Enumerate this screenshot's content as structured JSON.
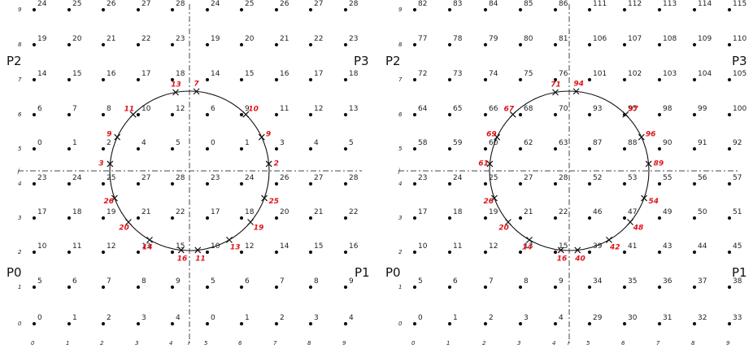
{
  "panels": [
    {
      "rows": [
        [
          0,
          1,
          2,
          3,
          4,
          0,
          1,
          2,
          3,
          4
        ],
        [
          5,
          6,
          7,
          8,
          9,
          5,
          6,
          7,
          8,
          9
        ],
        [
          10,
          11,
          12,
          13,
          15,
          10,
          12,
          14,
          15,
          16
        ],
        [
          17,
          18,
          19,
          21,
          22,
          17,
          18,
          20,
          21,
          22
        ],
        [
          23,
          24,
          25,
          27,
          28,
          23,
          24,
          26,
          27,
          28
        ],
        [
          0,
          1,
          2,
          4,
          5,
          0,
          1,
          3,
          4,
          5
        ],
        [
          6,
          7,
          8,
          10,
          12,
          6,
          9,
          11,
          12,
          13
        ],
        [
          14,
          15,
          16,
          17,
          18,
          14,
          15,
          16,
          17,
          18
        ],
        [
          19,
          20,
          21,
          22,
          23,
          19,
          20,
          21,
          22,
          23
        ],
        [
          24,
          25,
          26,
          27,
          28,
          24,
          25,
          26,
          27,
          28
        ]
      ],
      "x_ticks": [
        "0",
        "1",
        "2",
        "3",
        "4",
        "i",
        "5",
        "6",
        "7",
        "8",
        "9"
      ],
      "y_ticks": [
        "0",
        "1",
        "2",
        "3",
        "4",
        "j",
        "5",
        "6",
        "7",
        "8",
        "9"
      ],
      "corner_labels": {
        "p0": "P0",
        "p1": "P1",
        "p2": "P2",
        "p3": "P3"
      },
      "crossing_labels": [
        "3",
        "26",
        "20",
        "14",
        "16",
        "11",
        "13",
        "19",
        "25",
        "2",
        "9",
        "10",
        "7",
        "13",
        "11",
        "9"
      ]
    },
    {
      "rows": [
        [
          0,
          1,
          2,
          3,
          4,
          29,
          30,
          31,
          32,
          33
        ],
        [
          5,
          6,
          7,
          8,
          9,
          34,
          35,
          36,
          37,
          38
        ],
        [
          10,
          11,
          12,
          13,
          15,
          39,
          41,
          43,
          44,
          45
        ],
        [
          17,
          18,
          19,
          21,
          22,
          46,
          47,
          49,
          50,
          51
        ],
        [
          23,
          24,
          25,
          27,
          28,
          52,
          53,
          55,
          56,
          57
        ],
        [
          58,
          59,
          60,
          62,
          63,
          87,
          88,
          90,
          91,
          92
        ],
        [
          64,
          65,
          66,
          68,
          70,
          93,
          95,
          98,
          99,
          100
        ],
        [
          72,
          73,
          74,
          75,
          76,
          101,
          102,
          103,
          104,
          105
        ],
        [
          77,
          78,
          79,
          80,
          81,
          106,
          107,
          108,
          109,
          110
        ],
        [
          82,
          83,
          84,
          85,
          86,
          111,
          112,
          113,
          114,
          115
        ]
      ],
      "x_ticks": [
        "0",
        "1",
        "2",
        "3",
        "4",
        "i",
        "5",
        "6",
        "7",
        "8",
        "9"
      ],
      "y_ticks": [
        "0",
        "1",
        "2",
        "3",
        "4",
        "j",
        "5",
        "6",
        "7",
        "8",
        "9"
      ],
      "corner_labels": {
        "p0": "P0",
        "p1": "P1",
        "p2": "P2",
        "p3": "P3"
      },
      "crossing_labels": [
        "61",
        "26",
        "20",
        "14",
        "16",
        "40",
        "42",
        "48",
        "54",
        "89",
        "96",
        "97",
        "94",
        "71",
        "67",
        "69"
      ]
    }
  ],
  "colors": {
    "crossing_label": "#e0141a",
    "point": "#111111",
    "circle": "#111111"
  }
}
